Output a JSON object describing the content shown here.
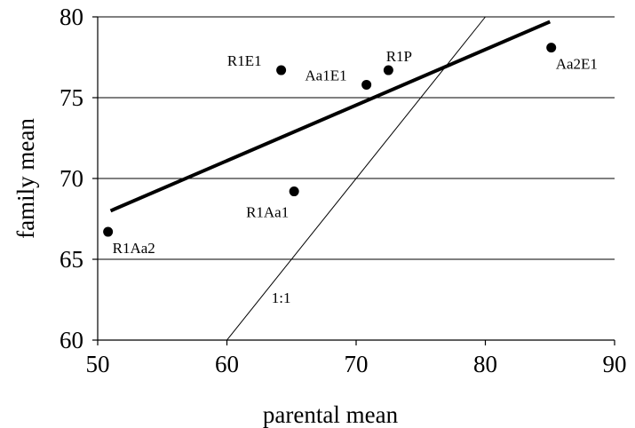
{
  "chart_data": {
    "type": "scatter",
    "xlabel": "parental mean",
    "ylabel": "family mean",
    "xlim": [
      50,
      90
    ],
    "ylim": [
      60,
      80
    ],
    "x_ticks": [
      50,
      60,
      70,
      80,
      90
    ],
    "y_ticks": [
      60,
      65,
      70,
      75,
      80
    ],
    "grid": "horizontal",
    "points": [
      {
        "label": "R1Aa2",
        "x": 50.8,
        "y": 66.7,
        "label_pos": "below-right"
      },
      {
        "label": "R1E1",
        "x": 64.2,
        "y": 76.7,
        "label_pos": "left"
      },
      {
        "label": "R1Aa1",
        "x": 65.2,
        "y": 69.2,
        "label_pos": "below-left"
      },
      {
        "label": "Aa1E1",
        "x": 70.8,
        "y": 75.8,
        "label_pos": "left"
      },
      {
        "label": "R1P",
        "x": 72.5,
        "y": 76.7,
        "label_pos": "above"
      },
      {
        "label": "Aa2E1",
        "x": 85.1,
        "y": 78.1,
        "label_pos": "below-right"
      }
    ],
    "trend_line": {
      "x1": 51.0,
      "y1": 68.0,
      "x2": 85.0,
      "y2": 79.7
    },
    "reference_line": {
      "label": "1:1",
      "x1": 60,
      "y1": 60,
      "x2": 80,
      "y2": 80,
      "label_x": 64.2,
      "label_y": 62.3
    }
  }
}
